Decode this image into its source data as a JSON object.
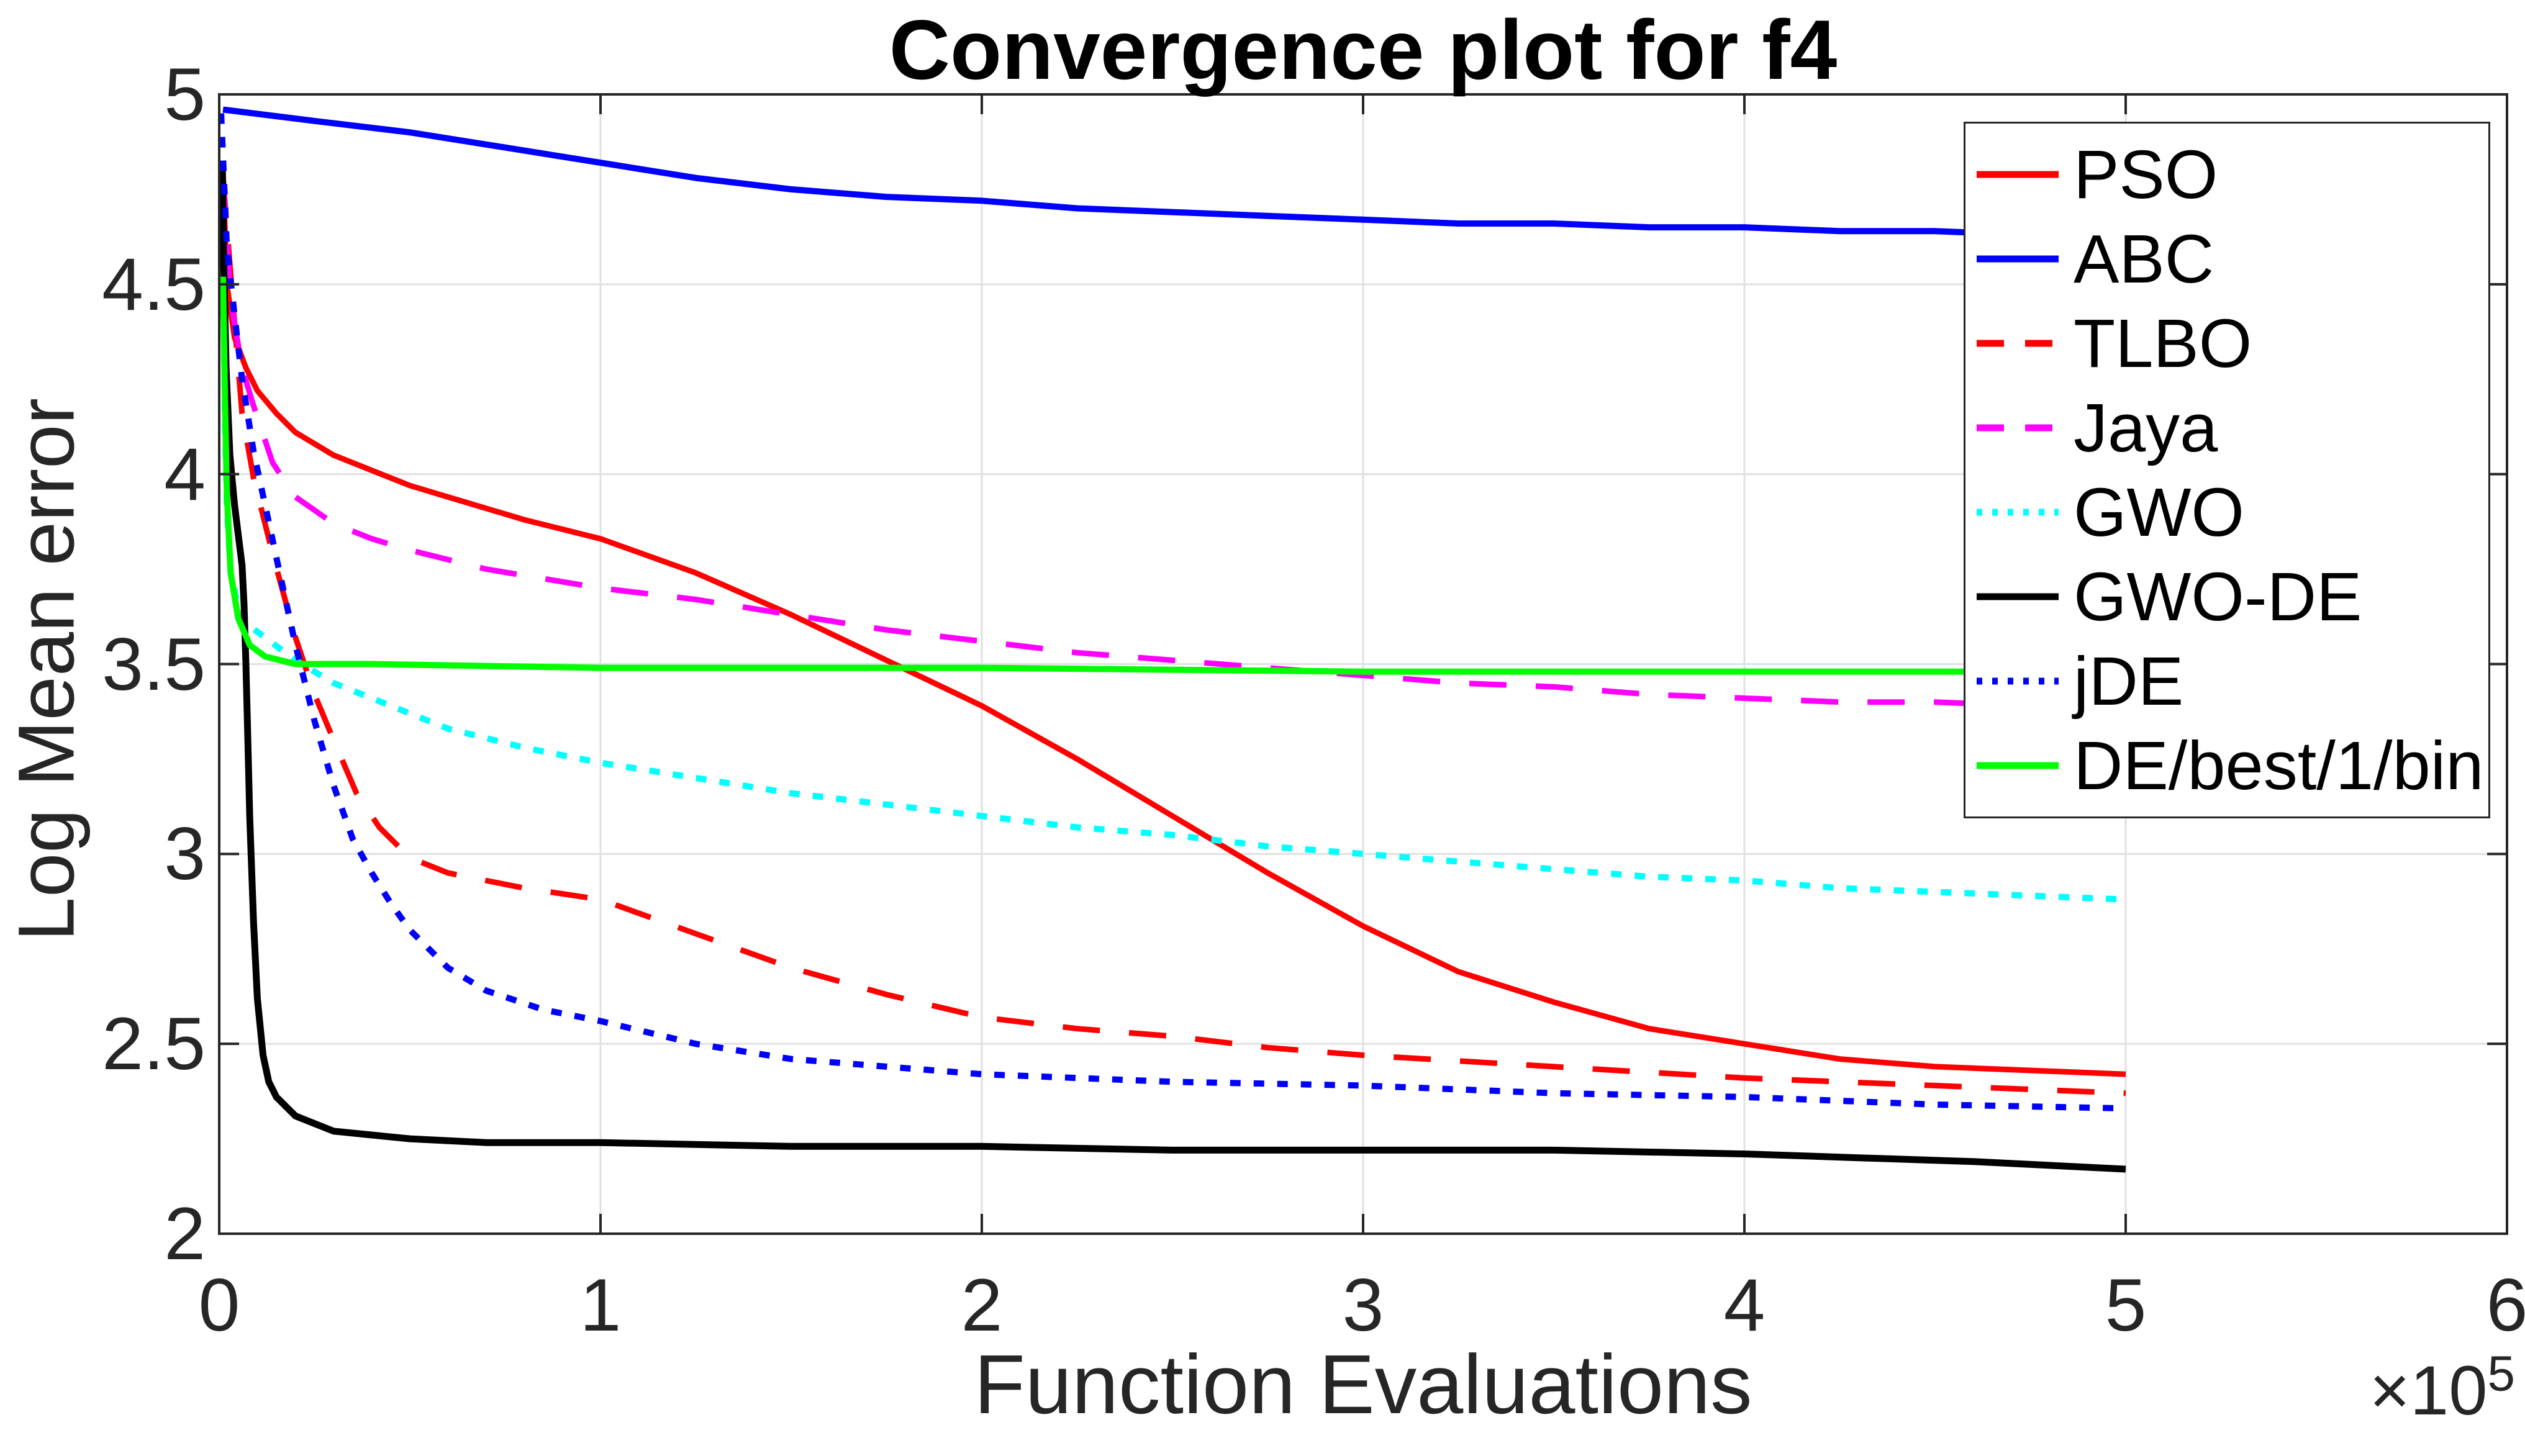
{
  "title": "Convergence plot for f4",
  "colors": {
    "background": "#ffffff",
    "axis": "#262626",
    "grid": "#e0e0e0",
    "tick_text": "#262626",
    "title_text": "#000000"
  },
  "x_multiplier": {
    "base": "×10",
    "exponent": "5"
  },
  "chart_data": {
    "type": "line",
    "title": "Convergence plot for f4",
    "xlabel": "Function Evaluations",
    "ylabel": "Log Mean error",
    "xlim": [
      0,
      6
    ],
    "ylim": [
      2,
      5
    ],
    "xticks": [
      0,
      1,
      2,
      3,
      4,
      5,
      6
    ],
    "yticks": [
      2,
      2.5,
      3,
      3.5,
      4,
      4.5,
      5
    ],
    "x_scale_note": "x values in units of 1e5 function evaluations",
    "grid": true,
    "legend_position": "upper right",
    "series": [
      {
        "name": "PSO",
        "color": "#ff0000",
        "style": "solid",
        "width": 9,
        "points": [
          [
            0.01,
            4.8
          ],
          [
            0.02,
            4.5
          ],
          [
            0.04,
            4.36
          ],
          [
            0.07,
            4.28
          ],
          [
            0.1,
            4.22
          ],
          [
            0.15,
            4.16
          ],
          [
            0.2,
            4.11
          ],
          [
            0.3,
            4.05
          ],
          [
            0.4,
            4.01
          ],
          [
            0.5,
            3.97
          ],
          [
            0.6,
            3.94
          ],
          [
            0.8,
            3.88
          ],
          [
            1.0,
            3.83
          ],
          [
            1.25,
            3.74
          ],
          [
            1.5,
            3.63
          ],
          [
            1.75,
            3.51
          ],
          [
            2.0,
            3.39
          ],
          [
            2.25,
            3.25
          ],
          [
            2.5,
            3.1
          ],
          [
            2.75,
            2.95
          ],
          [
            3.0,
            2.81
          ],
          [
            3.25,
            2.69
          ],
          [
            3.5,
            2.61
          ],
          [
            3.75,
            2.54
          ],
          [
            4.0,
            2.5
          ],
          [
            4.25,
            2.46
          ],
          [
            4.5,
            2.44
          ],
          [
            4.75,
            2.43
          ],
          [
            5.0,
            2.42
          ]
        ]
      },
      {
        "name": "ABC",
        "color": "#0000ff",
        "style": "solid",
        "width": 10,
        "points": [
          [
            0.01,
            4.96
          ],
          [
            0.25,
            4.93
          ],
          [
            0.5,
            4.9
          ],
          [
            0.75,
            4.86
          ],
          [
            1.0,
            4.82
          ],
          [
            1.25,
            4.78
          ],
          [
            1.5,
            4.75
          ],
          [
            1.75,
            4.73
          ],
          [
            2.0,
            4.72
          ],
          [
            2.25,
            4.7
          ],
          [
            2.5,
            4.69
          ],
          [
            2.75,
            4.68
          ],
          [
            3.0,
            4.67
          ],
          [
            3.25,
            4.66
          ],
          [
            3.5,
            4.66
          ],
          [
            3.75,
            4.65
          ],
          [
            4.0,
            4.65
          ],
          [
            4.25,
            4.64
          ],
          [
            4.5,
            4.64
          ],
          [
            4.75,
            4.63
          ],
          [
            5.0,
            4.63
          ]
        ]
      },
      {
        "name": "TLBO",
        "color": "#ff0000",
        "style": "dashed",
        "width": 9,
        "points": [
          [
            0.01,
            4.78
          ],
          [
            0.04,
            4.4
          ],
          [
            0.06,
            4.16
          ],
          [
            0.09,
            3.99
          ],
          [
            0.14,
            3.79
          ],
          [
            0.2,
            3.57
          ],
          [
            0.25,
            3.42
          ],
          [
            0.3,
            3.3
          ],
          [
            0.36,
            3.16
          ],
          [
            0.42,
            3.07
          ],
          [
            0.5,
            2.99
          ],
          [
            0.6,
            2.95
          ],
          [
            0.8,
            2.91
          ],
          [
            1.0,
            2.88
          ],
          [
            1.25,
            2.79
          ],
          [
            1.5,
            2.7
          ],
          [
            1.75,
            2.63
          ],
          [
            2.0,
            2.57
          ],
          [
            2.25,
            2.54
          ],
          [
            2.5,
            2.52
          ],
          [
            2.75,
            2.49
          ],
          [
            3.0,
            2.47
          ],
          [
            3.5,
            2.44
          ],
          [
            4.0,
            2.41
          ],
          [
            4.5,
            2.39
          ],
          [
            5.0,
            2.37
          ]
        ]
      },
      {
        "name": "Jaya",
        "color": "#ff00ff",
        "style": "dashed",
        "width": 9,
        "points": [
          [
            0.01,
            4.78
          ],
          [
            0.03,
            4.46
          ],
          [
            0.06,
            4.28
          ],
          [
            0.09,
            4.18
          ],
          [
            0.14,
            4.03
          ],
          [
            0.2,
            3.94
          ],
          [
            0.3,
            3.87
          ],
          [
            0.4,
            3.83
          ],
          [
            0.5,
            3.8
          ],
          [
            0.7,
            3.75
          ],
          [
            1.0,
            3.7
          ],
          [
            1.25,
            3.67
          ],
          [
            1.5,
            3.63
          ],
          [
            1.75,
            3.59
          ],
          [
            2.0,
            3.56
          ],
          [
            2.25,
            3.53
          ],
          [
            2.5,
            3.51
          ],
          [
            2.75,
            3.49
          ],
          [
            3.0,
            3.47
          ],
          [
            3.25,
            3.45
          ],
          [
            3.5,
            3.44
          ],
          [
            3.75,
            3.42
          ],
          [
            4.0,
            3.41
          ],
          [
            4.25,
            3.4
          ],
          [
            4.5,
            3.4
          ],
          [
            4.75,
            3.39
          ],
          [
            5.0,
            3.39
          ]
        ]
      },
      {
        "name": "GWO",
        "color": "#00ffff",
        "style": "dotted",
        "width": 10,
        "points": [
          [
            0.01,
            4.63
          ],
          [
            0.015,
            4.15
          ],
          [
            0.02,
            3.92
          ],
          [
            0.03,
            3.74
          ],
          [
            0.05,
            3.65
          ],
          [
            0.08,
            3.6
          ],
          [
            0.12,
            3.57
          ],
          [
            0.16,
            3.54
          ],
          [
            0.2,
            3.51
          ],
          [
            0.25,
            3.48
          ],
          [
            0.3,
            3.45
          ],
          [
            0.4,
            3.41
          ],
          [
            0.5,
            3.37
          ],
          [
            0.6,
            3.33
          ],
          [
            0.8,
            3.28
          ],
          [
            1.0,
            3.24
          ],
          [
            1.25,
            3.2
          ],
          [
            1.5,
            3.16
          ],
          [
            1.75,
            3.13
          ],
          [
            2.0,
            3.1
          ],
          [
            2.25,
            3.07
          ],
          [
            2.5,
            3.05
          ],
          [
            2.75,
            3.02
          ],
          [
            3.0,
            3.0
          ],
          [
            3.25,
            2.98
          ],
          [
            3.5,
            2.96
          ],
          [
            3.75,
            2.94
          ],
          [
            4.0,
            2.93
          ],
          [
            4.25,
            2.91
          ],
          [
            4.5,
            2.9
          ],
          [
            4.75,
            2.89
          ],
          [
            5.0,
            2.88
          ]
        ]
      },
      {
        "name": "GWO-DE",
        "color": "#000000",
        "style": "solid",
        "width": 11,
        "points": [
          [
            0.008,
            4.82
          ],
          [
            0.012,
            4.55
          ],
          [
            0.018,
            4.28
          ],
          [
            0.028,
            4.05
          ],
          [
            0.04,
            3.92
          ],
          [
            0.05,
            3.84
          ],
          [
            0.06,
            3.76
          ],
          [
            0.065,
            3.66
          ],
          [
            0.07,
            3.5
          ],
          [
            0.075,
            3.3
          ],
          [
            0.08,
            3.1
          ],
          [
            0.09,
            2.82
          ],
          [
            0.1,
            2.62
          ],
          [
            0.115,
            2.47
          ],
          [
            0.13,
            2.4
          ],
          [
            0.15,
            2.36
          ],
          [
            0.2,
            2.31
          ],
          [
            0.25,
            2.29
          ],
          [
            0.3,
            2.27
          ],
          [
            0.4,
            2.26
          ],
          [
            0.5,
            2.25
          ],
          [
            0.7,
            2.24
          ],
          [
            1.0,
            2.24
          ],
          [
            1.5,
            2.23
          ],
          [
            2.0,
            2.23
          ],
          [
            2.5,
            2.22
          ],
          [
            3.0,
            2.22
          ],
          [
            3.5,
            2.22
          ],
          [
            4.0,
            2.21
          ],
          [
            4.3,
            2.2
          ],
          [
            4.6,
            2.19
          ],
          [
            4.8,
            2.18
          ],
          [
            5.0,
            2.17
          ]
        ]
      },
      {
        "name": "jDE",
        "color": "#0000ff",
        "style": "dotted",
        "width": 10,
        "points": [
          [
            0.005,
            4.95
          ],
          [
            0.02,
            4.6
          ],
          [
            0.04,
            4.42
          ],
          [
            0.06,
            4.25
          ],
          [
            0.09,
            4.06
          ],
          [
            0.12,
            3.92
          ],
          [
            0.15,
            3.78
          ],
          [
            0.2,
            3.55
          ],
          [
            0.25,
            3.35
          ],
          [
            0.3,
            3.18
          ],
          [
            0.35,
            3.04
          ],
          [
            0.4,
            2.95
          ],
          [
            0.45,
            2.87
          ],
          [
            0.5,
            2.8
          ],
          [
            0.6,
            2.7
          ],
          [
            0.7,
            2.64
          ],
          [
            0.85,
            2.59
          ],
          [
            1.0,
            2.56
          ],
          [
            1.25,
            2.5
          ],
          [
            1.5,
            2.46
          ],
          [
            1.75,
            2.44
          ],
          [
            2.0,
            2.42
          ],
          [
            2.5,
            2.4
          ],
          [
            3.0,
            2.39
          ],
          [
            3.5,
            2.37
          ],
          [
            4.0,
            2.36
          ],
          [
            4.5,
            2.34
          ],
          [
            5.0,
            2.33
          ]
        ]
      },
      {
        "name": "DE/best/1/bin",
        "color": "#00ff00",
        "style": "solid",
        "width": 10,
        "points": [
          [
            0.01,
            4.52
          ],
          [
            0.015,
            4.2
          ],
          [
            0.02,
            3.95
          ],
          [
            0.03,
            3.74
          ],
          [
            0.05,
            3.62
          ],
          [
            0.08,
            3.55
          ],
          [
            0.12,
            3.52
          ],
          [
            0.2,
            3.5
          ],
          [
            0.4,
            3.5
          ],
          [
            1.0,
            3.49
          ],
          [
            2.0,
            3.49
          ],
          [
            3.0,
            3.48
          ],
          [
            4.0,
            3.48
          ],
          [
            5.0,
            3.48
          ]
        ]
      }
    ]
  },
  "legend": {
    "items": [
      "PSO",
      "ABC",
      "TLBO",
      "Jaya",
      "GWO",
      "GWO-DE",
      "jDE",
      "DE/best/1/bin"
    ]
  }
}
